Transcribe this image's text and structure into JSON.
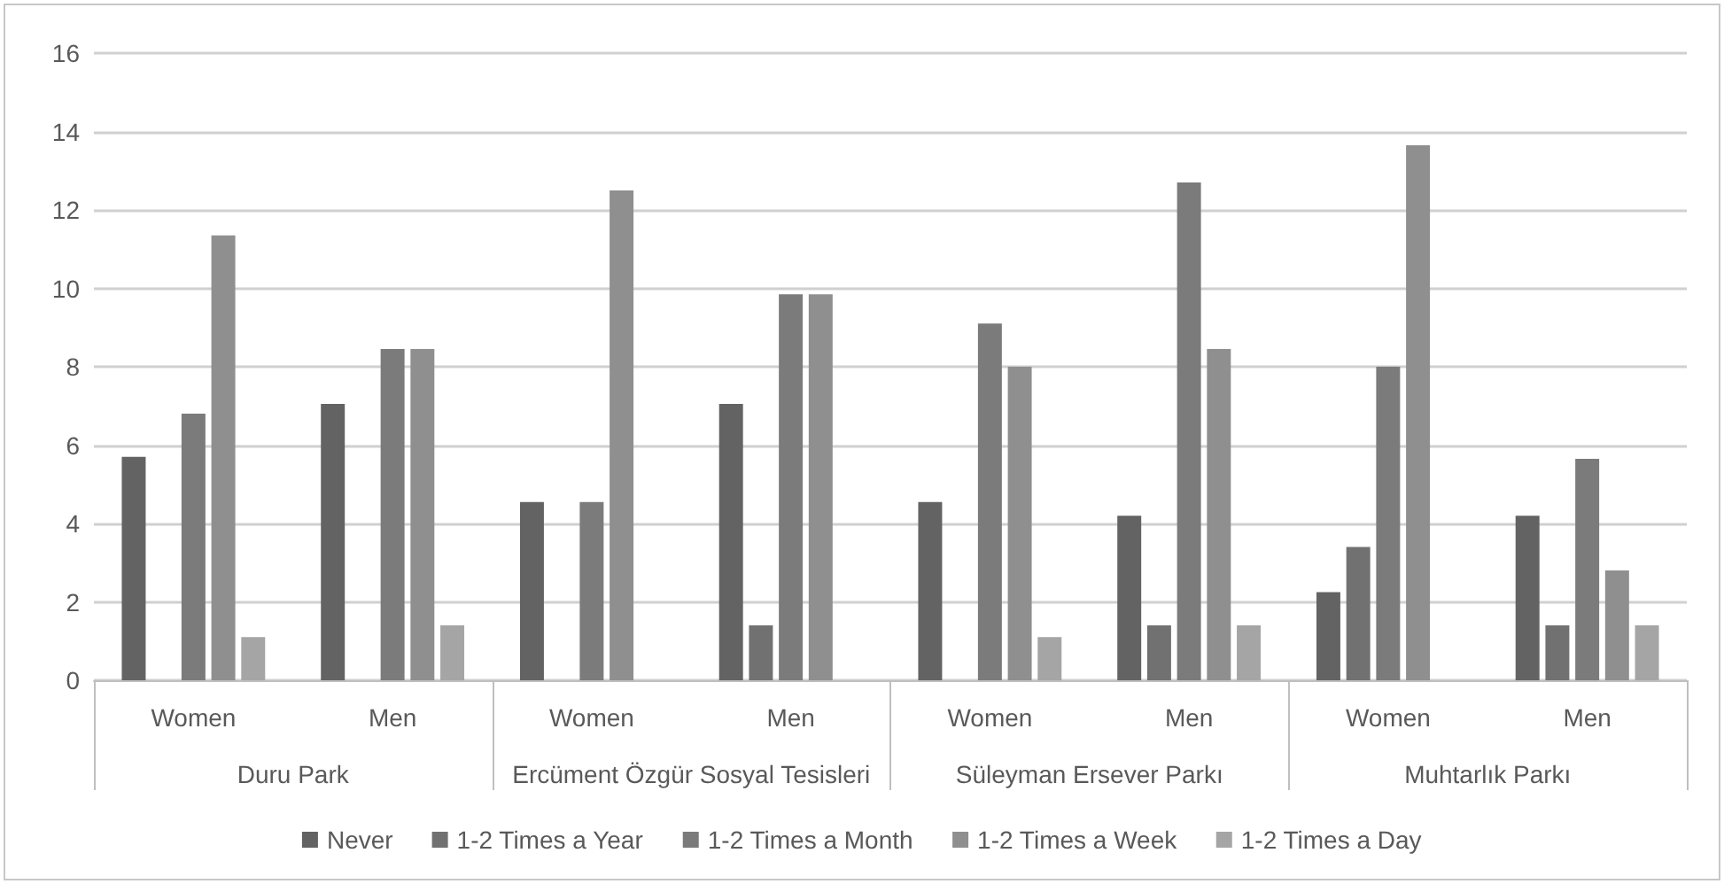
{
  "chart_data": {
    "type": "bar",
    "categories": [
      "Women",
      "Men",
      "Women",
      "Men",
      "Women",
      "Men",
      "Women",
      "Men"
    ],
    "annotations": [
      "Duru Park",
      "Ercüment Özgür Sosyal Tesisleri",
      "Süleyman Ersever Parkı",
      "Muhtarlık Parkı"
    ],
    "series": [
      {
        "name": "Never",
        "color": "#636363",
        "values": [
          5.7,
          7.05,
          4.55,
          7.05,
          4.55,
          4.2,
          2.25,
          4.2
        ]
      },
      {
        "name": "1-2 Times a Year",
        "color": "#717171",
        "values": [
          0,
          0,
          0,
          1.4,
          0,
          1.4,
          3.4,
          1.4
        ]
      },
      {
        "name": "1-2 Times a Month",
        "color": "#7b7b7b",
        "values": [
          6.8,
          8.45,
          4.55,
          9.85,
          9.1,
          12.7,
          8.0,
          5.65
        ]
      },
      {
        "name": "1-2 Times a Week",
        "color": "#8f8f8f",
        "values": [
          11.35,
          8.45,
          12.5,
          9.85,
          8.0,
          8.45,
          13.65,
          2.8
        ]
      },
      {
        "name": "1-2 Times a Day",
        "color": "#a5a5a5",
        "values": [
          1.1,
          1.4,
          0,
          0,
          1.1,
          1.4,
          0,
          1.4
        ]
      }
    ],
    "ylim": [
      0,
      16
    ],
    "yticks": [
      0,
      2,
      4,
      6,
      8,
      10,
      12,
      14,
      16
    ],
    "grid": "y",
    "legend": "bottom"
  }
}
